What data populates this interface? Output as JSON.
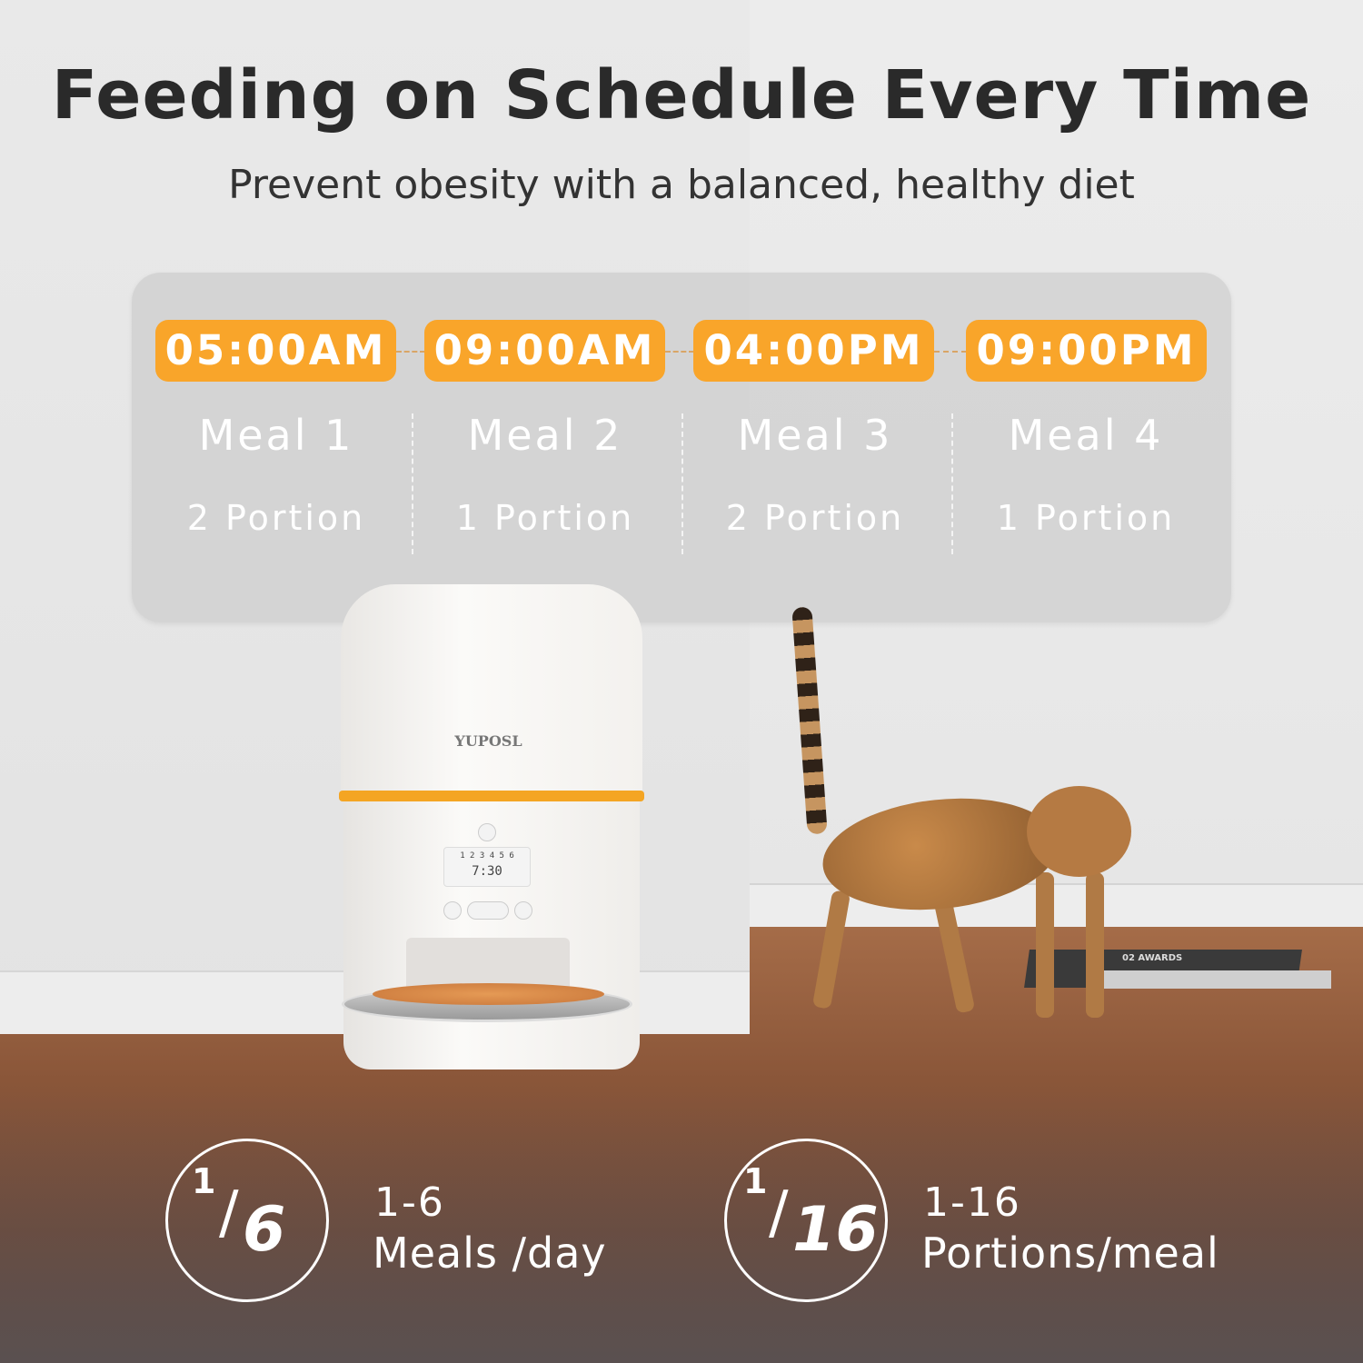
{
  "header": {
    "title": "Feeding on Schedule Every Time",
    "subtitle": "Prevent obesity with a balanced, healthy diet"
  },
  "schedule": [
    {
      "time": "05:00AM",
      "meal": "Meal 1",
      "portion": "2 Portion"
    },
    {
      "time": "09:00AM",
      "meal": "Meal 2",
      "portion": "1 Portion"
    },
    {
      "time": "04:00PM",
      "meal": "Meal 3",
      "portion": "2 Portion"
    },
    {
      "time": "09:00PM",
      "meal": "Meal 4",
      "portion": "1 Portion"
    }
  ],
  "product": {
    "brand": "YUPOSL",
    "display_time": "7:30",
    "display_slots": "1 2 3 4 5 6"
  },
  "props": {
    "book_title": "02 AWARDS"
  },
  "stats": [
    {
      "fraction_top": "1",
      "fraction_bottom": "6",
      "range": "1-6",
      "label": "Meals /day"
    },
    {
      "fraction_top": "1",
      "fraction_bottom": "16",
      "range": "1-16",
      "label": "Portions/meal"
    }
  ],
  "colors": {
    "accent": "#f9a52a",
    "text": "#2a2a2a"
  }
}
